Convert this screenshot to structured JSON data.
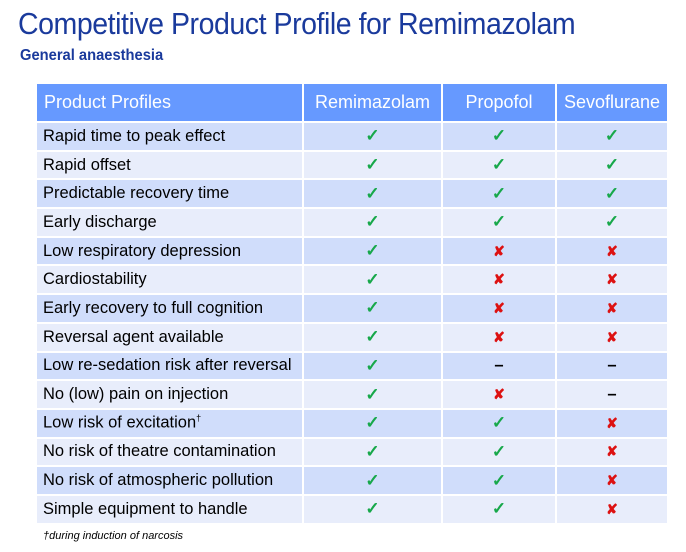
{
  "title": "Competitive Product Profile for Remimazolam",
  "subtitle": "General anaesthesia",
  "colors": {
    "header_bg": "#6699ff",
    "yes": "#17a84a",
    "no": "#dd1111",
    "title": "#1a3a9c"
  },
  "table": {
    "headers": [
      "Product Profiles",
      "Remimazolam",
      "Propofol",
      "Sevoflurane"
    ],
    "rows": [
      {
        "label": "Rapid time to peak effect",
        "sup": "",
        "values": [
          "yes",
          "yes",
          "yes"
        ]
      },
      {
        "label": "Rapid offset",
        "sup": "",
        "values": [
          "yes",
          "yes",
          "yes"
        ]
      },
      {
        "label": "Predictable recovery time",
        "sup": "",
        "values": [
          "yes",
          "yes",
          "yes"
        ]
      },
      {
        "label": "Early discharge",
        "sup": "",
        "values": [
          "yes",
          "yes",
          "yes"
        ]
      },
      {
        "label": "Low respiratory depression",
        "sup": "",
        "values": [
          "yes",
          "no",
          "no"
        ]
      },
      {
        "label": "Cardiostability",
        "sup": "",
        "values": [
          "yes",
          "no",
          "no"
        ]
      },
      {
        "label": "Early recovery to full cognition",
        "sup": "",
        "values": [
          "yes",
          "no",
          "no"
        ]
      },
      {
        "label": "Reversal agent available",
        "sup": "",
        "values": [
          "yes",
          "no",
          "no"
        ]
      },
      {
        "label": "Low re-sedation risk after reversal",
        "sup": "",
        "values": [
          "yes",
          "na",
          "na"
        ]
      },
      {
        "label": "No (low) pain on injection",
        "sup": "",
        "values": [
          "yes",
          "no",
          "na"
        ]
      },
      {
        "label": "Low risk of excitation",
        "sup": "†",
        "values": [
          "yes",
          "yes",
          "no"
        ]
      },
      {
        "label": "No risk of theatre contamination",
        "sup": "",
        "values": [
          "yes",
          "yes",
          "no"
        ]
      },
      {
        "label": "No risk of atmospheric pollution",
        "sup": "",
        "values": [
          "yes",
          "yes",
          "no"
        ]
      },
      {
        "label": "Simple equipment to handle",
        "sup": "",
        "values": [
          "yes",
          "yes",
          "no"
        ]
      }
    ],
    "symbols": {
      "yes": "✓",
      "no": "✘",
      "na": "–"
    }
  },
  "footnote": "†during induction of narcosis"
}
